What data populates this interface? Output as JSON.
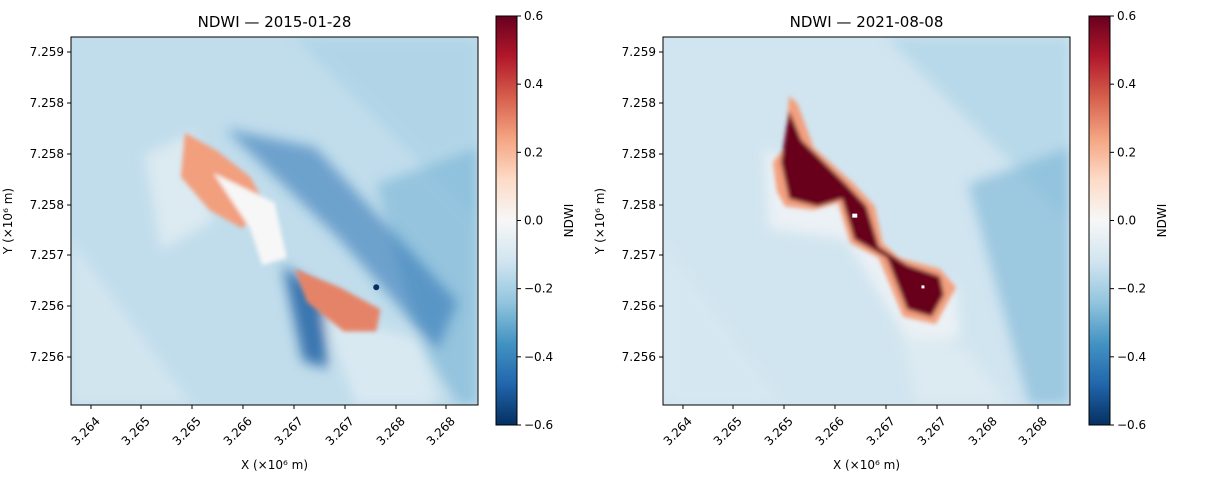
{
  "chart_data": [
    {
      "type": "heatmap",
      "title": "NDWI — 2015-01-28",
      "xlabel": "X (×10⁶ m)",
      "ylabel": "Y (×10⁶ m)",
      "x_ticks": [
        "3.264",
        "3.265",
        "3.265",
        "3.266",
        "3.267",
        "3.267",
        "3.268",
        "3.268"
      ],
      "y_ticks": [
        "7.259",
        "7.258",
        "7.258",
        "7.258",
        "7.257",
        "7.256",
        "7.256"
      ],
      "colorbar": {
        "label": "NDWI",
        "colormap": "RdBu_r",
        "vmin": -0.6,
        "vmax": 0.6,
        "ticks": [
          "0.6",
          "0.4",
          "0.2",
          "0.0",
          "−0.2",
          "−0.4",
          "−0.6"
        ]
      },
      "water_index": {
        "background_ndwi": -0.15,
        "channel_ndwi": -0.45,
        "upper_lobe_ndwi": 0.25,
        "lower_lobe_ndwi": 0.3,
        "center_ndwi": 0.0
      }
    },
    {
      "type": "heatmap",
      "title": "NDWI — 2021-08-08",
      "xlabel": "X (×10⁶ m)",
      "ylabel": "Y (×10⁶ m)",
      "x_ticks": [
        "3.264",
        "3.265",
        "3.265",
        "3.266",
        "3.267",
        "3.267",
        "3.268",
        "3.268"
      ],
      "y_ticks": [
        "7.259",
        "7.258",
        "7.258",
        "7.258",
        "7.257",
        "7.256",
        "7.256"
      ],
      "colorbar": {
        "label": "NDWI",
        "colormap": "RdBu_r",
        "vmin": -0.6,
        "vmax": 0.6,
        "ticks": [
          "0.6",
          "0.4",
          "0.2",
          "0.0",
          "−0.2",
          "−0.4",
          "−0.6"
        ]
      },
      "water_index": {
        "background_ndwi": -0.12,
        "lake_ndwi": 0.6,
        "lake_edge_ndwi": 0.25
      }
    }
  ]
}
